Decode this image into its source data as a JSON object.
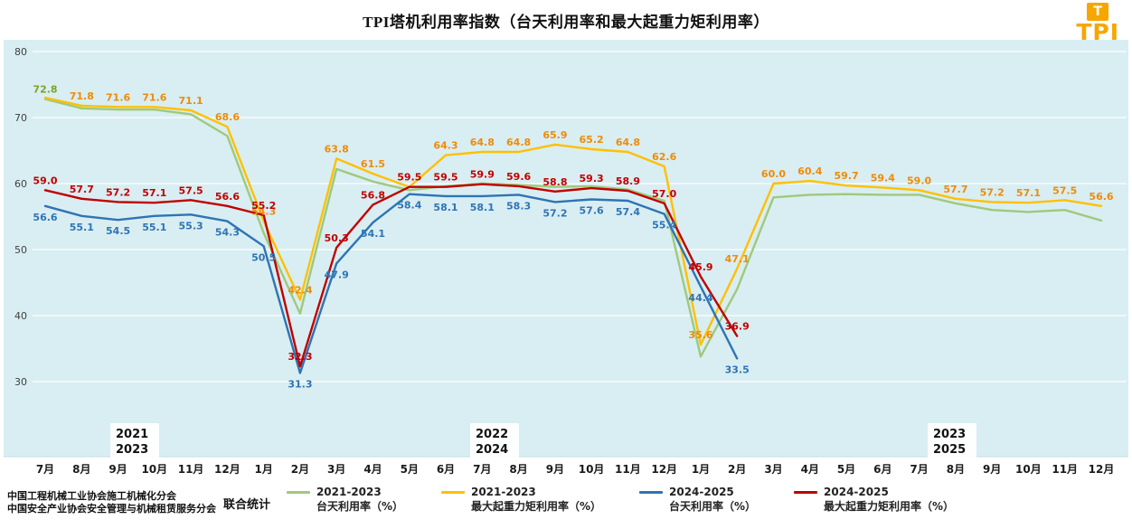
{
  "chart_data": {
    "type": "line",
    "title": "TPI塔机利用率指数（台天利用率和最大起重力矩利用率）",
    "ylim": [
      30,
      80
    ],
    "yticks": [
      30,
      40,
      50,
      60,
      70,
      80
    ],
    "grid": true,
    "legend_position": "bottom",
    "categories": [
      "7月",
      "8月",
      "9月",
      "10月",
      "11月",
      "12月",
      "1月",
      "2月",
      "3月",
      "4月",
      "5月",
      "6月",
      "7月",
      "8月",
      "9月",
      "10月",
      "11月",
      "12月",
      "1月",
      "2月",
      "3月",
      "4月",
      "5月",
      "6月",
      "7月",
      "8月",
      "9月",
      "10月",
      "11月",
      "12月"
    ],
    "year_annotations": [
      {
        "top": "2021",
        "bottom": "2023"
      },
      {
        "top": "2022",
        "bottom": "2024"
      },
      {
        "top": "2023",
        "bottom": "2025"
      }
    ],
    "series": [
      {
        "name": "2021-2023",
        "metric": "台天利用率（%）",
        "color": "#9fc97c",
        "label_color": "#7ca427",
        "label_position": "above",
        "values": [
          72.8,
          71.4,
          71.2,
          71.2,
          70.5,
          67.2,
          52.5,
          40.3,
          62.2,
          60.3,
          59.0,
          59.6,
          60.0,
          59.8,
          59.5,
          59.6,
          59.1,
          57.4,
          33.8,
          44.0,
          57.9,
          58.3,
          58.4,
          58.3,
          58.3,
          57.0,
          56.0,
          55.7,
          56.0,
          54.4
        ],
        "labels": [
          "72.8",
          null,
          null,
          null,
          null,
          null,
          null,
          null,
          null,
          null,
          null,
          null,
          null,
          null,
          null,
          null,
          null,
          null,
          null,
          null,
          null,
          null,
          null,
          null,
          null,
          null,
          null,
          null,
          null,
          null
        ]
      },
      {
        "name": "2021-2023",
        "metric": "最大起重力矩利用率（%）",
        "color": "#ffc000",
        "label_color": "#ef8b07",
        "label_position": "above",
        "values": [
          73.0,
          71.8,
          71.6,
          71.6,
          71.1,
          68.6,
          54.3,
          42.4,
          63.8,
          61.5,
          59.5,
          64.3,
          64.8,
          64.8,
          65.9,
          65.2,
          64.8,
          62.6,
          35.6,
          47.1,
          60.0,
          60.4,
          59.7,
          59.4,
          59.0,
          57.7,
          57.2,
          57.1,
          57.5,
          56.6
        ],
        "labels": [
          null,
          "71.8",
          "71.6",
          "71.6",
          "71.1",
          "68.6",
          "54.3",
          "42.4",
          "63.8",
          "61.5",
          null,
          "64.3",
          "64.8",
          "64.8",
          "65.9",
          "65.2",
          "64.8",
          "62.6",
          "35.6",
          "47.1",
          "60.0",
          "60.4",
          "59.7",
          "59.4",
          "59.0",
          "57.7",
          "57.2",
          "57.1",
          "57.5",
          "56.6"
        ]
      },
      {
        "name": "2024-2025",
        "metric": "台天利用率（%）",
        "color": "#2e74b5",
        "label_color": "#2e74b5",
        "label_position": "below",
        "values": [
          56.6,
          55.1,
          54.5,
          55.1,
          55.3,
          54.3,
          50.5,
          31.3,
          47.9,
          54.1,
          58.4,
          58.1,
          58.1,
          58.3,
          57.2,
          57.6,
          57.4,
          55.4,
          44.4,
          33.5,
          null,
          null,
          null,
          null,
          null,
          null,
          null,
          null,
          null,
          null
        ],
        "labels": [
          "56.6",
          "55.1",
          "54.5",
          "55.1",
          "55.3",
          "54.3",
          "50.5",
          "31.3",
          "47.9",
          "54.1",
          "58.4",
          "58.1",
          "58.1",
          "58.3",
          "57.2",
          "57.6",
          "57.4",
          "55.4",
          "44.4",
          "33.5",
          null,
          null,
          null,
          null,
          null,
          null,
          null,
          null,
          null,
          null
        ]
      },
      {
        "name": "2024-2025",
        "metric": "最大起重力矩利用率（%）",
        "color": "#c00000",
        "label_color": "#c00000",
        "label_position": "above",
        "values": [
          59.0,
          57.7,
          57.2,
          57.1,
          57.5,
          56.6,
          55.2,
          32.3,
          50.3,
          56.8,
          59.5,
          59.5,
          59.9,
          59.6,
          58.8,
          59.3,
          58.9,
          57.0,
          45.9,
          36.9,
          null,
          null,
          null,
          null,
          null,
          null,
          null,
          null,
          null,
          null
        ],
        "labels": [
          "59.0",
          "57.7",
          "57.2",
          "57.1",
          "57.5",
          "56.6",
          "55.2",
          "32.3",
          "50.3",
          "56.8",
          "59.5",
          "59.5",
          "59.9",
          "59.6",
          "58.8",
          "59.3",
          "58.9",
          "57.0",
          "45.9",
          "36.9",
          null,
          null,
          null,
          null,
          null,
          null,
          null,
          null,
          null,
          null
        ]
      }
    ]
  },
  "logo": {
    "text": "TPI",
    "t": "T",
    "color": "#f7a600"
  },
  "footer": {
    "org_line1": "中国工程机械工业协会施工机械化分会",
    "org_line2": "中国安全产业协会安全管理与机械租赁服务分会",
    "joint": "联合统计"
  }
}
